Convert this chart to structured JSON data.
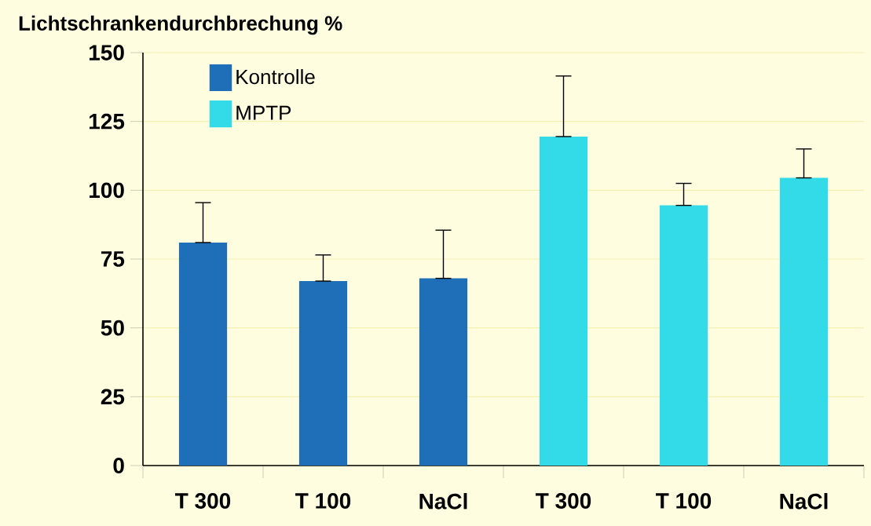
{
  "chart_data": {
    "type": "bar",
    "ylabel": "Lichtschrankendurchbrechung %",
    "categories": [
      "T 300",
      "T 100",
      "NaCl",
      "T 300",
      "T 100",
      "NaCl"
    ],
    "series": [
      {
        "name": "Kontrolle",
        "color": "#1f6fb8",
        "values": [
          81,
          67,
          68,
          null,
          null,
          null
        ],
        "errors": [
          [
            81,
            95.5
          ],
          [
            67,
            76.5
          ],
          [
            68,
            85.5
          ],
          null,
          null,
          null
        ]
      },
      {
        "name": "MPTP",
        "color": "#33dbe8",
        "values": [
          null,
          null,
          null,
          119.5,
          94.5,
          104.5
        ],
        "errors": [
          null,
          null,
          null,
          [
            119.5,
            141.5
          ],
          [
            94.5,
            102.5
          ],
          [
            104.5,
            115
          ]
        ]
      }
    ],
    "ylim": [
      0,
      150
    ],
    "yticks": [
      0,
      25,
      50,
      75,
      100,
      125,
      150
    ],
    "grid": "y",
    "legend": "top left"
  }
}
